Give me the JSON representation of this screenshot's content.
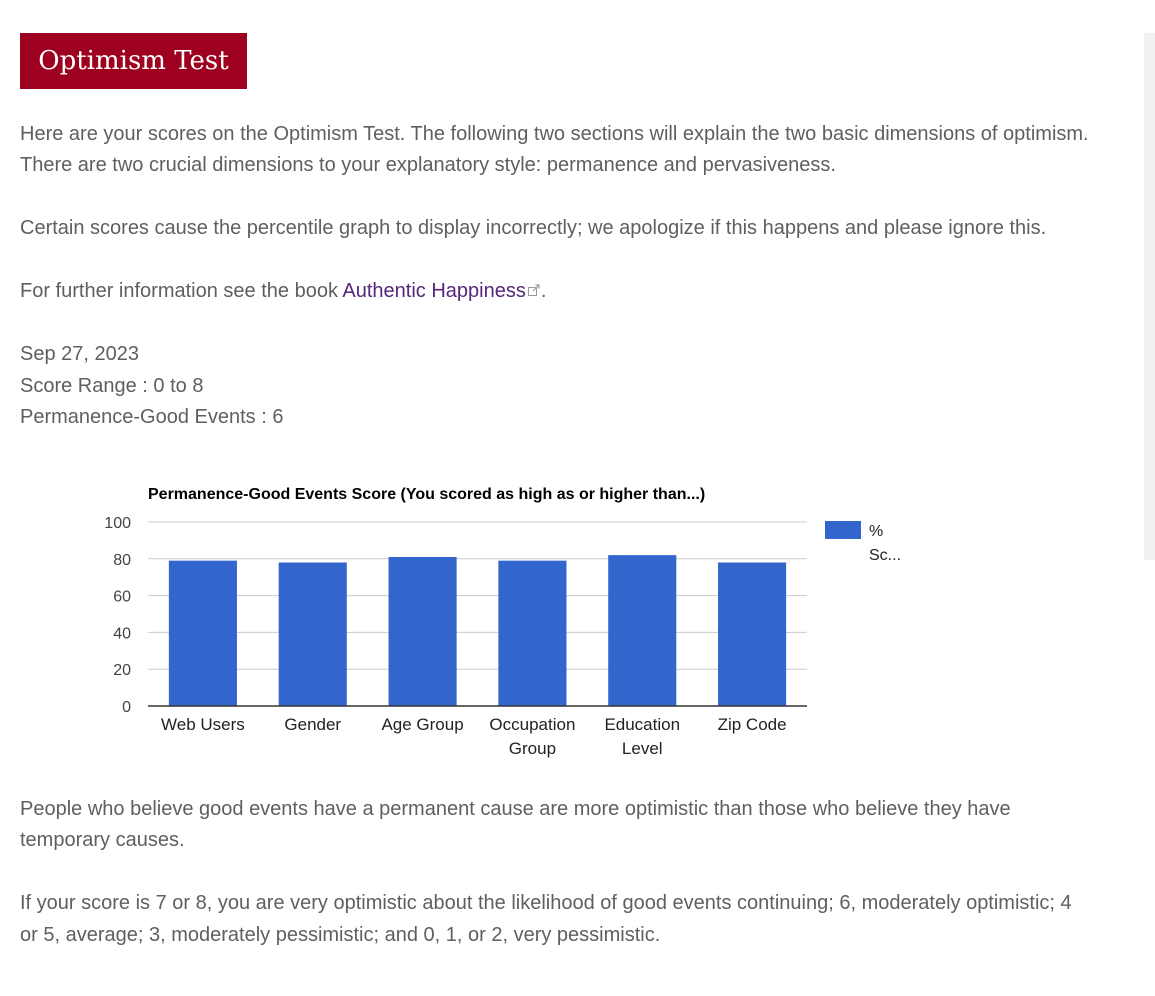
{
  "colors": {
    "title_bg": "#9e0020",
    "link": "#55267a",
    "bar": "#3366cc",
    "text": "#5f5f5f",
    "grid": "#cccccc"
  },
  "page": {
    "title": "Optimism Test",
    "intro_line1": "Here are your scores on the Optimism Test. The following two sections will explain the two basic dimensions of optimism.",
    "intro_line2": "There are two crucial dimensions to your explanatory style: permanence and pervasiveness.",
    "notice": "Certain scores cause the percentile graph to display incorrectly; we apologize if this happens and please ignore this.",
    "further_prefix": "For further information see the book",
    "book_link": "Authentic Happiness",
    "external_link_icon": "external-link-icon",
    "further_suffix": ".",
    "date": "Sep 27, 2023",
    "score_range": "Score Range : 0 to 8",
    "score": "Permanence-Good Events : 6",
    "explanation_line1": "People who believe good events have a permanent cause are more optimistic than those who believe they have",
    "explanation_line2": "temporary causes.",
    "interpretation_line1": "If your score is 7 or 8, you are very optimistic about the likelihood of good events continuing; 6, moderately optimistic; 4",
    "interpretation_line2": "or 5, average; 3, moderately pessimistic; and 0, 1, or 2, very pessimistic."
  },
  "chart_data": {
    "type": "bar",
    "title": "Permanence-Good Events Score (You scored as high as or higher than...)",
    "categories": [
      "Web Users",
      "Gender",
      "Age Group",
      "Occupation Group",
      "Education Level",
      "Zip Code"
    ],
    "category_lines": [
      [
        "Web Users"
      ],
      [
        "Gender"
      ],
      [
        "Age Group"
      ],
      [
        "Occupation",
        "Group"
      ],
      [
        "Education",
        "Level"
      ],
      [
        "Zip Code"
      ]
    ],
    "series": [
      {
        "name": "% Sc...",
        "legend_lines": [
          "%",
          "Sc..."
        ],
        "values": [
          79,
          78,
          81,
          79,
          82,
          78
        ]
      }
    ],
    "ylim": [
      0,
      100
    ],
    "yticks": [
      0,
      20,
      40,
      60,
      80,
      100
    ],
    "grid": true,
    "legend": "right"
  }
}
